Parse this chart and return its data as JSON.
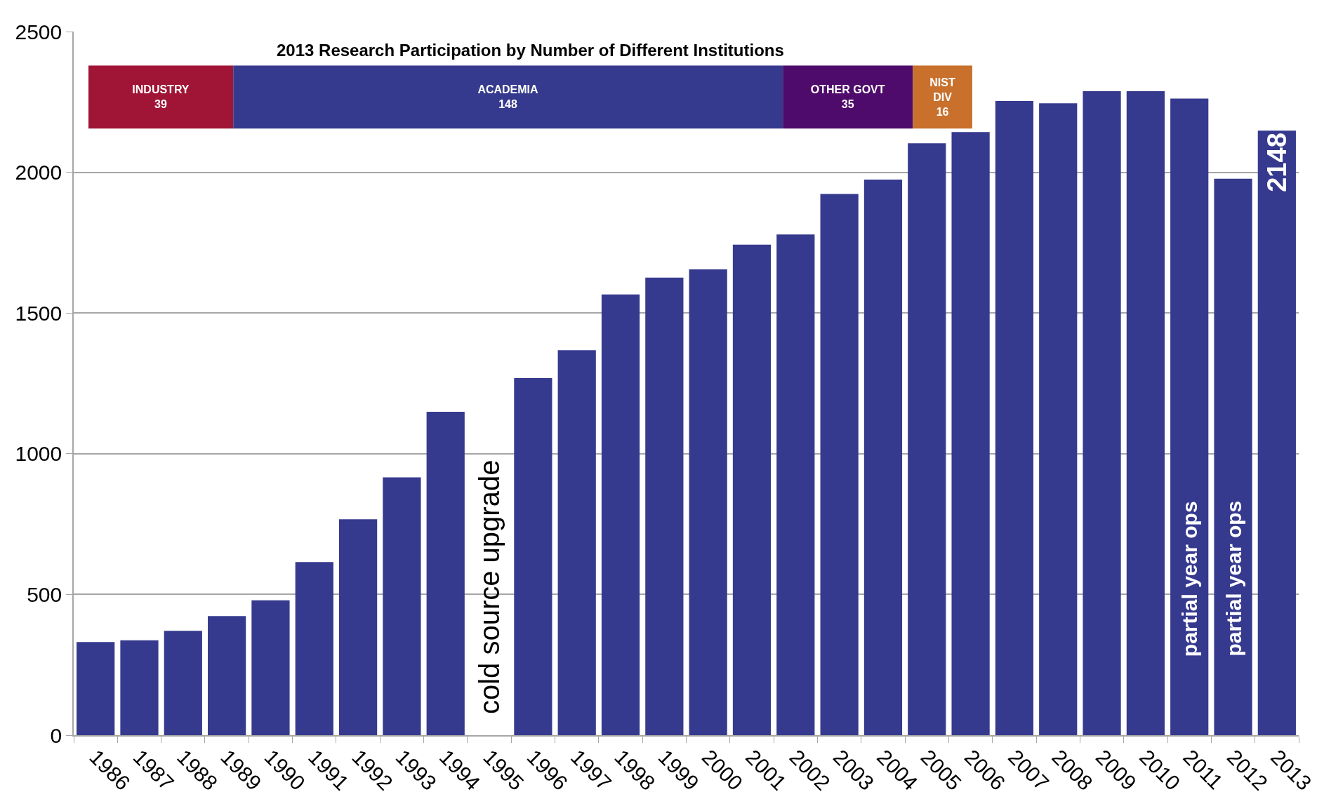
{
  "chart_data": [
    {
      "type": "bar",
      "categories": [
        "1986",
        "1987",
        "1988",
        "1989",
        "1990",
        "1991",
        "1992",
        "1993",
        "1994",
        "1995",
        "1996",
        "1997",
        "1998",
        "1999",
        "2000",
        "2001",
        "2002",
        "2003",
        "2004",
        "2005",
        "2006",
        "2007",
        "2008",
        "2009",
        "2010",
        "2011",
        "2012",
        "2013"
      ],
      "values": [
        331,
        337,
        371,
        423,
        479,
        615,
        767,
        916,
        1149,
        null,
        1269,
        1368,
        1566,
        1626,
        1655,
        1743,
        1779,
        1923,
        1974,
        2103,
        2143,
        2253,
        2245,
        2288,
        2288,
        2262,
        1977,
        2148
      ],
      "color": "#363a8e",
      "ylim": [
        0,
        2500
      ],
      "yticks": [
        0,
        500,
        1000,
        1500,
        2000,
        2500
      ],
      "grid": "y",
      "value_labels": [
        null,
        null,
        null,
        null,
        null,
        null,
        null,
        null,
        null,
        null,
        null,
        null,
        null,
        null,
        null,
        null,
        null,
        null,
        null,
        null,
        null,
        null,
        null,
        null,
        null,
        null,
        null,
        "2148"
      ],
      "annotations": [
        {
          "text": "cold source upgrade",
          "x": "1995"
        },
        {
          "text": "partial year ops",
          "x": "2011"
        },
        {
          "text": "partial year ops",
          "x": "2012"
        }
      ]
    },
    {
      "type": "bar",
      "title": "2013 Research Participation by Number of Different Institutions",
      "orientation": "horizontal",
      "stacked": true,
      "categories": [
        null
      ],
      "xlim": [
        0,
        238
      ],
      "tick_labels": false,
      "data_labels": true,
      "series": [
        {
          "name": "INDUSTRY",
          "color": "#a01535",
          "values": [
            39
          ]
        },
        {
          "name": "ACADEMIA",
          "color": "#363a8e",
          "values": [
            148
          ]
        },
        {
          "name": "OTHER GOVT",
          "color": "#4f0b6b",
          "values": [
            35
          ]
        },
        {
          "name": "NIST DIV",
          "color": "#c8702c",
          "values": [
            16
          ]
        }
      ]
    }
  ]
}
